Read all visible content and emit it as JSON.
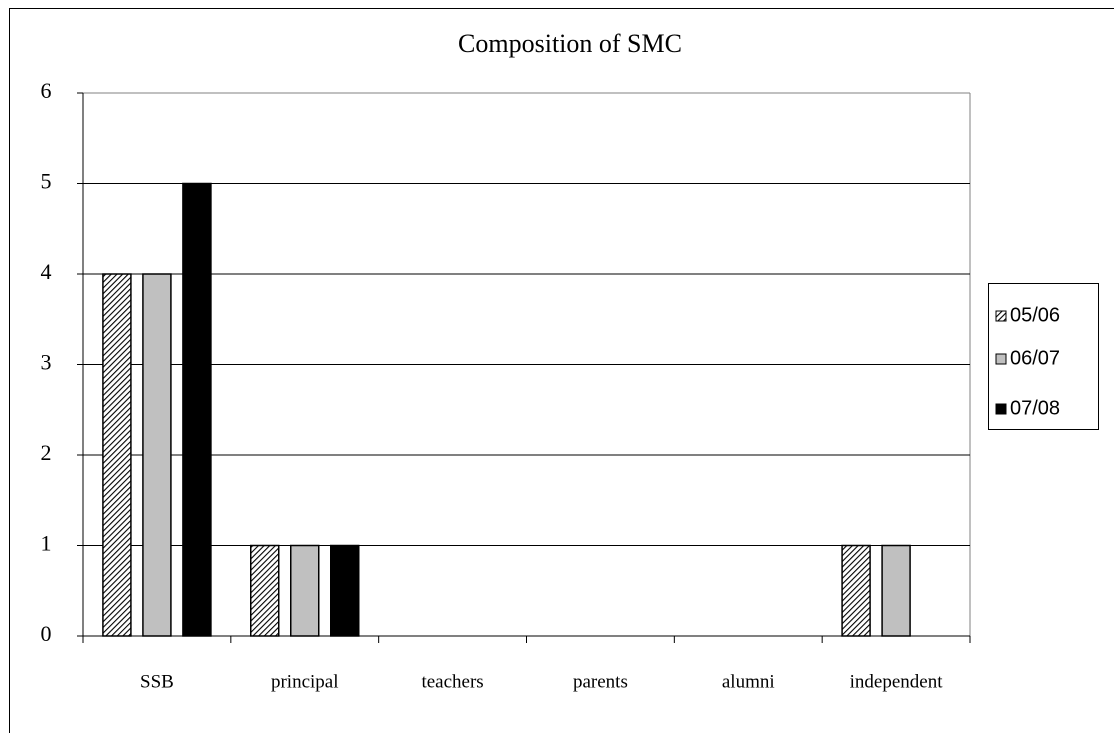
{
  "chart_data": {
    "type": "bar",
    "title": "Composition of SMC",
    "categories": [
      "SSB",
      "principal",
      "teachers",
      "parents",
      "alumni",
      "independent"
    ],
    "series": [
      {
        "name": "05/06",
        "color": "#000000",
        "pattern": "diagonal",
        "values": [
          4,
          1,
          0,
          0,
          0,
          1
        ]
      },
      {
        "name": "06/07",
        "color": "#c0c0c0",
        "values": [
          4,
          1,
          0,
          0,
          0,
          1
        ]
      },
      {
        "name": "07/08",
        "color": "#000000",
        "values": [
          5,
          1,
          0,
          0,
          0,
          0
        ]
      }
    ],
    "ylim": [
      0,
      6
    ],
    "yticks": [
      0,
      1,
      2,
      3,
      4,
      5,
      6
    ],
    "grid": true,
    "legend": "right"
  }
}
